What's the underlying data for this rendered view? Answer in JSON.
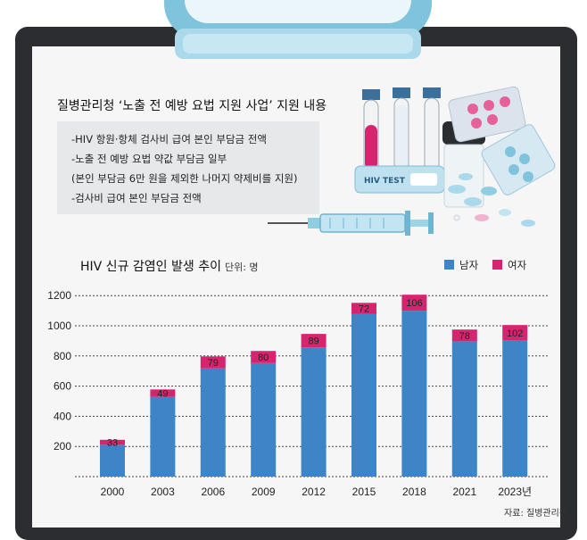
{
  "header": {
    "title": "질병관리청 ‘노출 전 예방 요법 지원 사업’ 지원 내용",
    "notes": [
      "-HIV 항원·항체 검사비 급여 본인 부담금 전액",
      "-노출 전 예방 요법 약값 부담금 일부",
      " (본인 부담금 6만 원을 제외한 나머지 약제비를 지원)",
      "-검사비 급여 본인 부담금 전액"
    ],
    "test_label": "HIV TEST"
  },
  "chart_title": "HIV 신규 감염인 발생 추이",
  "unit_label": "단위: 명",
  "legend": {
    "male": "남자",
    "female": "여자"
  },
  "colors": {
    "male": "#3d85c6",
    "female": "#d6246e",
    "grid": "#444444"
  },
  "source": "자료: 질병관리청",
  "chart_data": {
    "type": "bar",
    "stacked": true,
    "categories": [
      "2000",
      "2003",
      "2006",
      "2009",
      "2012",
      "2015",
      "2018",
      "2021",
      "2023년"
    ],
    "series": [
      {
        "name": "남자",
        "values": [
          211,
          529,
          718,
          753,
          857,
          1080,
          1100,
          897,
          903
        ]
      },
      {
        "name": "여자",
        "values": [
          33,
          49,
          79,
          80,
          89,
          72,
          106,
          78,
          102
        ]
      }
    ],
    "data_labels": [
      "33",
      "49",
      "79",
      "80",
      "89",
      "72",
      "106",
      "78",
      "102"
    ],
    "yticks": [
      200,
      400,
      600,
      800,
      1000,
      1200
    ],
    "ylim": [
      0,
      1200
    ],
    "grid": true,
    "legend_position": "top-right"
  }
}
